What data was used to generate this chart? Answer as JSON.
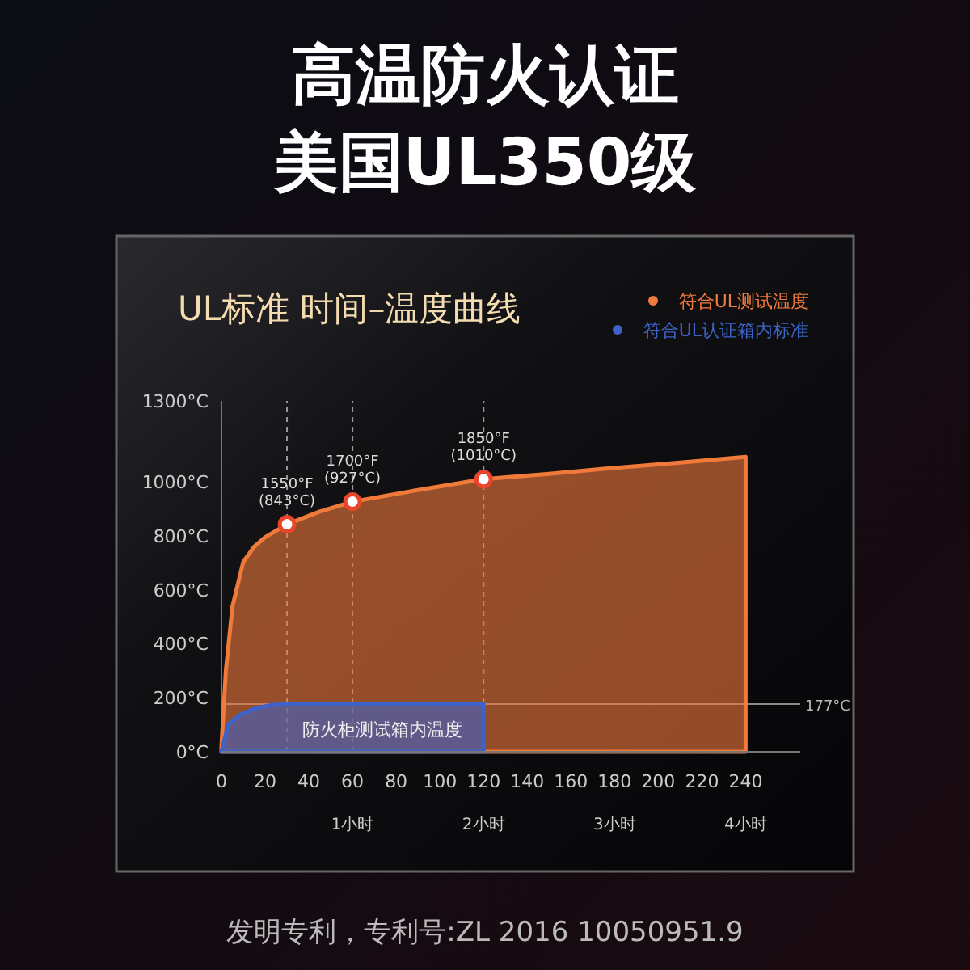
{
  "chart_data": {
    "type": "area",
    "title": "高温防火认证",
    "subtitle": "美国UL350级",
    "xlim": [
      0,
      265
    ],
    "xticks": [
      0,
      20,
      40,
      60,
      80,
      100,
      120,
      140,
      160,
      180,
      200,
      220,
      240
    ],
    "x2lim": [
      0,
      4.4167
    ],
    "x2ticks": [
      {
        "value": 1,
        "label": "1小时"
      },
      {
        "value": 2,
        "label": "2小时"
      },
      {
        "value": 3,
        "label": "3小时"
      },
      {
        "value": 4,
        "label": "4小时"
      }
    ],
    "ylim": [
      0,
      1300
    ],
    "yticks": [
      {
        "value": 0,
        "label": "0°C"
      },
      {
        "value": 200,
        "label": "200°C"
      },
      {
        "value": 400,
        "label": "400°C"
      },
      {
        "value": 600,
        "label": "600°C"
      },
      {
        "value": 800,
        "label": "800°C"
      },
      {
        "value": 1000,
        "label": "1000°C"
      },
      {
        "value": 1300,
        "label": "1300°C"
      }
    ],
    "series": [
      {
        "name": "符合UL测试温度",
        "color": "#f07a3a",
        "x": [
          0,
          2,
          5,
          10,
          15,
          20,
          30,
          45,
          60,
          90,
          120,
          150,
          180,
          210,
          240
        ],
        "values": [
          20,
          300,
          538,
          704,
          760,
          795,
          843,
          890,
          927,
          970,
          1010,
          1030,
          1052,
          1072,
          1093
        ]
      },
      {
        "name": "符合UL认证箱内标准",
        "color": "#3d63c9",
        "x": [
          0,
          3,
          8,
          15,
          22,
          30,
          60,
          90,
          120
        ],
        "values": [
          0,
          100,
          135,
          160,
          172,
          177,
          177,
          177,
          177
        ]
      },
      {
        "type": "scatter",
        "color": "#e8452a",
        "marker": "circle",
        "x": [
          30,
          60,
          120
        ],
        "values": [
          843,
          927,
          1010
        ]
      }
    ],
    "ref_lines": [
      {
        "axis": "y",
        "value": 177,
        "label": "177°C",
        "color": "#8a8a8a"
      },
      {
        "axis": "x",
        "value": 30,
        "line_style": "dashed",
        "color": "#9a9a9a"
      },
      {
        "axis": "x",
        "value": 60,
        "line_style": "dashed",
        "color": "#9a9a9a"
      },
      {
        "axis": "x",
        "value": 120,
        "line_style": "dashed",
        "color": "#9a9a9a"
      }
    ],
    "annotations": [
      "UL标准 时间–温度曲线",
      {
        "text": "1550°F\n(843°C)",
        "x": 30,
        "y": 843
      },
      {
        "text": "1700°F\n(927°C)",
        "x": 60,
        "y": 927
      },
      {
        "text": "1850°F\n(1010°C)",
        "x": 120,
        "y": 1010
      },
      "防火柜测试箱内温度",
      "发明专利，专利号:ZL 2016 10050951.9"
    ],
    "legend": "top right"
  }
}
